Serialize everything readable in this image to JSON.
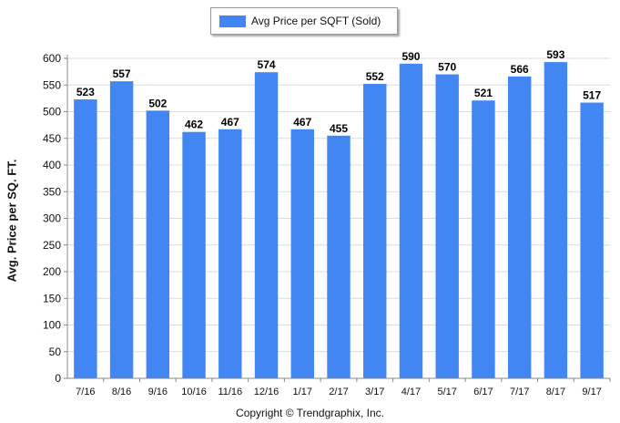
{
  "chart_data": {
    "type": "bar",
    "categories": [
      "7/16",
      "8/16",
      "9/16",
      "10/16",
      "11/16",
      "12/16",
      "1/17",
      "2/17",
      "3/17",
      "4/17",
      "5/17",
      "6/17",
      "7/17",
      "8/17",
      "9/17"
    ],
    "series": [
      {
        "name": "Avg Price per SQFT (Sold)",
        "values": [
          523,
          557,
          502,
          462,
          467,
          574,
          467,
          455,
          552,
          590,
          570,
          521,
          566,
          593,
          517
        ]
      }
    ],
    "ylabel": "Avg. Price per SQ. FT.",
    "xlabel": "",
    "ylim": [
      0,
      600
    ],
    "yticks": [
      0,
      50,
      100,
      150,
      200,
      250,
      300,
      350,
      400,
      450,
      500,
      550,
      600
    ],
    "grid": true,
    "legend_position": "top-center",
    "bar_color": "#4286f4"
  },
  "footer": {
    "copyright": "Copyright © Trendgraphix, Inc."
  }
}
